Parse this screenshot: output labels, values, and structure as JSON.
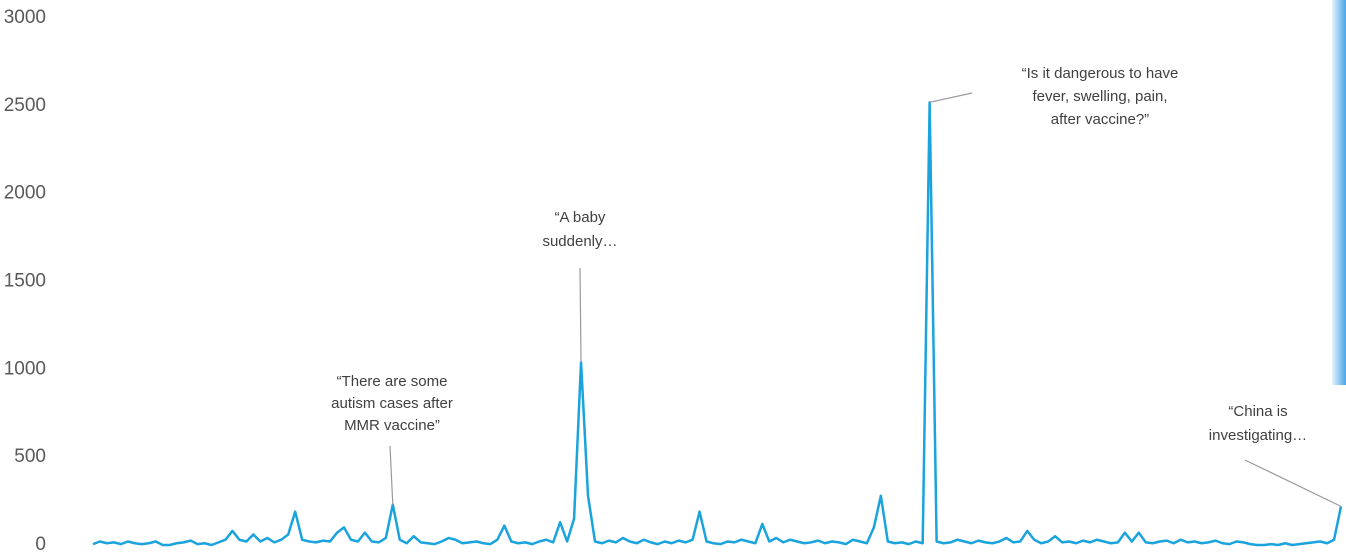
{
  "chart_data": {
    "type": "line",
    "color": "#1aa3dc",
    "ylim": [
      0,
      3000
    ],
    "yticks": [
      0,
      500,
      1000,
      1500,
      2000,
      2500,
      3000
    ],
    "values": [
      5,
      20,
      10,
      15,
      5,
      20,
      10,
      5,
      10,
      20,
      0,
      0,
      10,
      15,
      25,
      5,
      10,
      0,
      15,
      30,
      80,
      30,
      20,
      60,
      20,
      40,
      15,
      30,
      60,
      190,
      30,
      20,
      15,
      25,
      20,
      70,
      100,
      30,
      20,
      70,
      20,
      15,
      40,
      230,
      30,
      10,
      50,
      15,
      10,
      5,
      20,
      40,
      30,
      10,
      15,
      20,
      10,
      5,
      30,
      110,
      20,
      10,
      15,
      5,
      20,
      30,
      15,
      130,
      20,
      150,
      1040,
      280,
      20,
      10,
      25,
      15,
      40,
      20,
      10,
      30,
      15,
      5,
      20,
      10,
      25,
      15,
      30,
      190,
      20,
      10,
      5,
      20,
      15,
      30,
      20,
      10,
      120,
      20,
      40,
      15,
      30,
      20,
      10,
      15,
      25,
      10,
      20,
      15,
      5,
      30,
      20,
      10,
      100,
      280,
      20,
      10,
      15,
      5,
      20,
      10,
      2520,
      20,
      10,
      15,
      30,
      20,
      10,
      25,
      15,
      10,
      20,
      40,
      15,
      20,
      80,
      30,
      10,
      20,
      50,
      15,
      20,
      10,
      25,
      15,
      30,
      20,
      10,
      15,
      70,
      20,
      70,
      15,
      10,
      20,
      25,
      10,
      30,
      15,
      20,
      10,
      15,
      25,
      10,
      5,
      20,
      15,
      5,
      0,
      0,
      5,
      0,
      10,
      0,
      5,
      10,
      15,
      20,
      10,
      30,
      220
    ],
    "annotations": [
      [
        "“There are some",
        "autism cases after",
        "MMR vaccine”"
      ],
      [
        "“A baby",
        "suddenly…"
      ],
      [
        "“Is it dangerous to have",
        "fever, swelling, pain,",
        "after vaccine?”"
      ],
      [
        "“China is",
        "investigating…"
      ]
    ]
  }
}
